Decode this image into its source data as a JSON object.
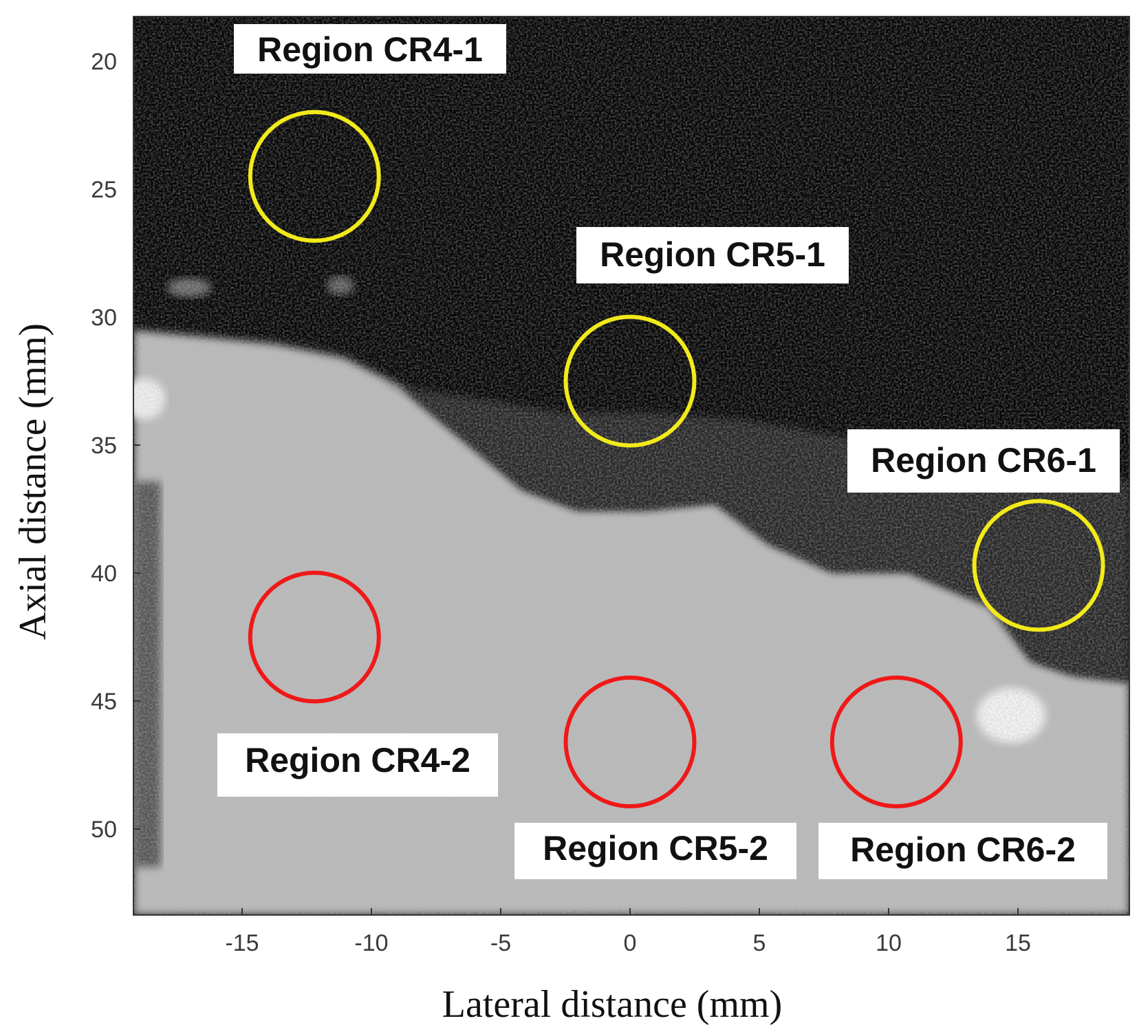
{
  "figure": {
    "xlabel": "Lateral distance (mm)",
    "ylabel": "Axial distance (mm)",
    "x_ticks": [
      "-15",
      "-10",
      "-5",
      "0",
      "5",
      "10",
      "15"
    ],
    "y_ticks": [
      "20",
      "25",
      "30",
      "35",
      "40",
      "45",
      "50"
    ],
    "colormap": "grayscale",
    "circle_colors": {
      "yellow": "#f2ea1a",
      "red": "#f01818"
    }
  },
  "regions": [
    {
      "label": "Region CR4-1",
      "color": "yellow",
      "center_mm": [
        -12.2,
        24.5
      ],
      "radius_mm": 2.5
    },
    {
      "label": "Region CR5-1",
      "color": "yellow",
      "center_mm": [
        0,
        32.5
      ],
      "radius_mm": 2.5
    },
    {
      "label": "Region CR6-1",
      "color": "yellow",
      "center_mm": [
        15.8,
        39.7
      ],
      "radius_mm": 2.5
    },
    {
      "label": "Region CR4-2",
      "color": "red",
      "center_mm": [
        -12.2,
        42.5
      ],
      "radius_mm": 2.5
    },
    {
      "label": "Region CR5-2",
      "color": "red",
      "center_mm": [
        0,
        46.6
      ],
      "radius_mm": 2.5
    },
    {
      "label": "Region CR6-2",
      "color": "red",
      "center_mm": [
        10.3,
        46.6
      ],
      "radius_mm": 2.5
    }
  ]
}
